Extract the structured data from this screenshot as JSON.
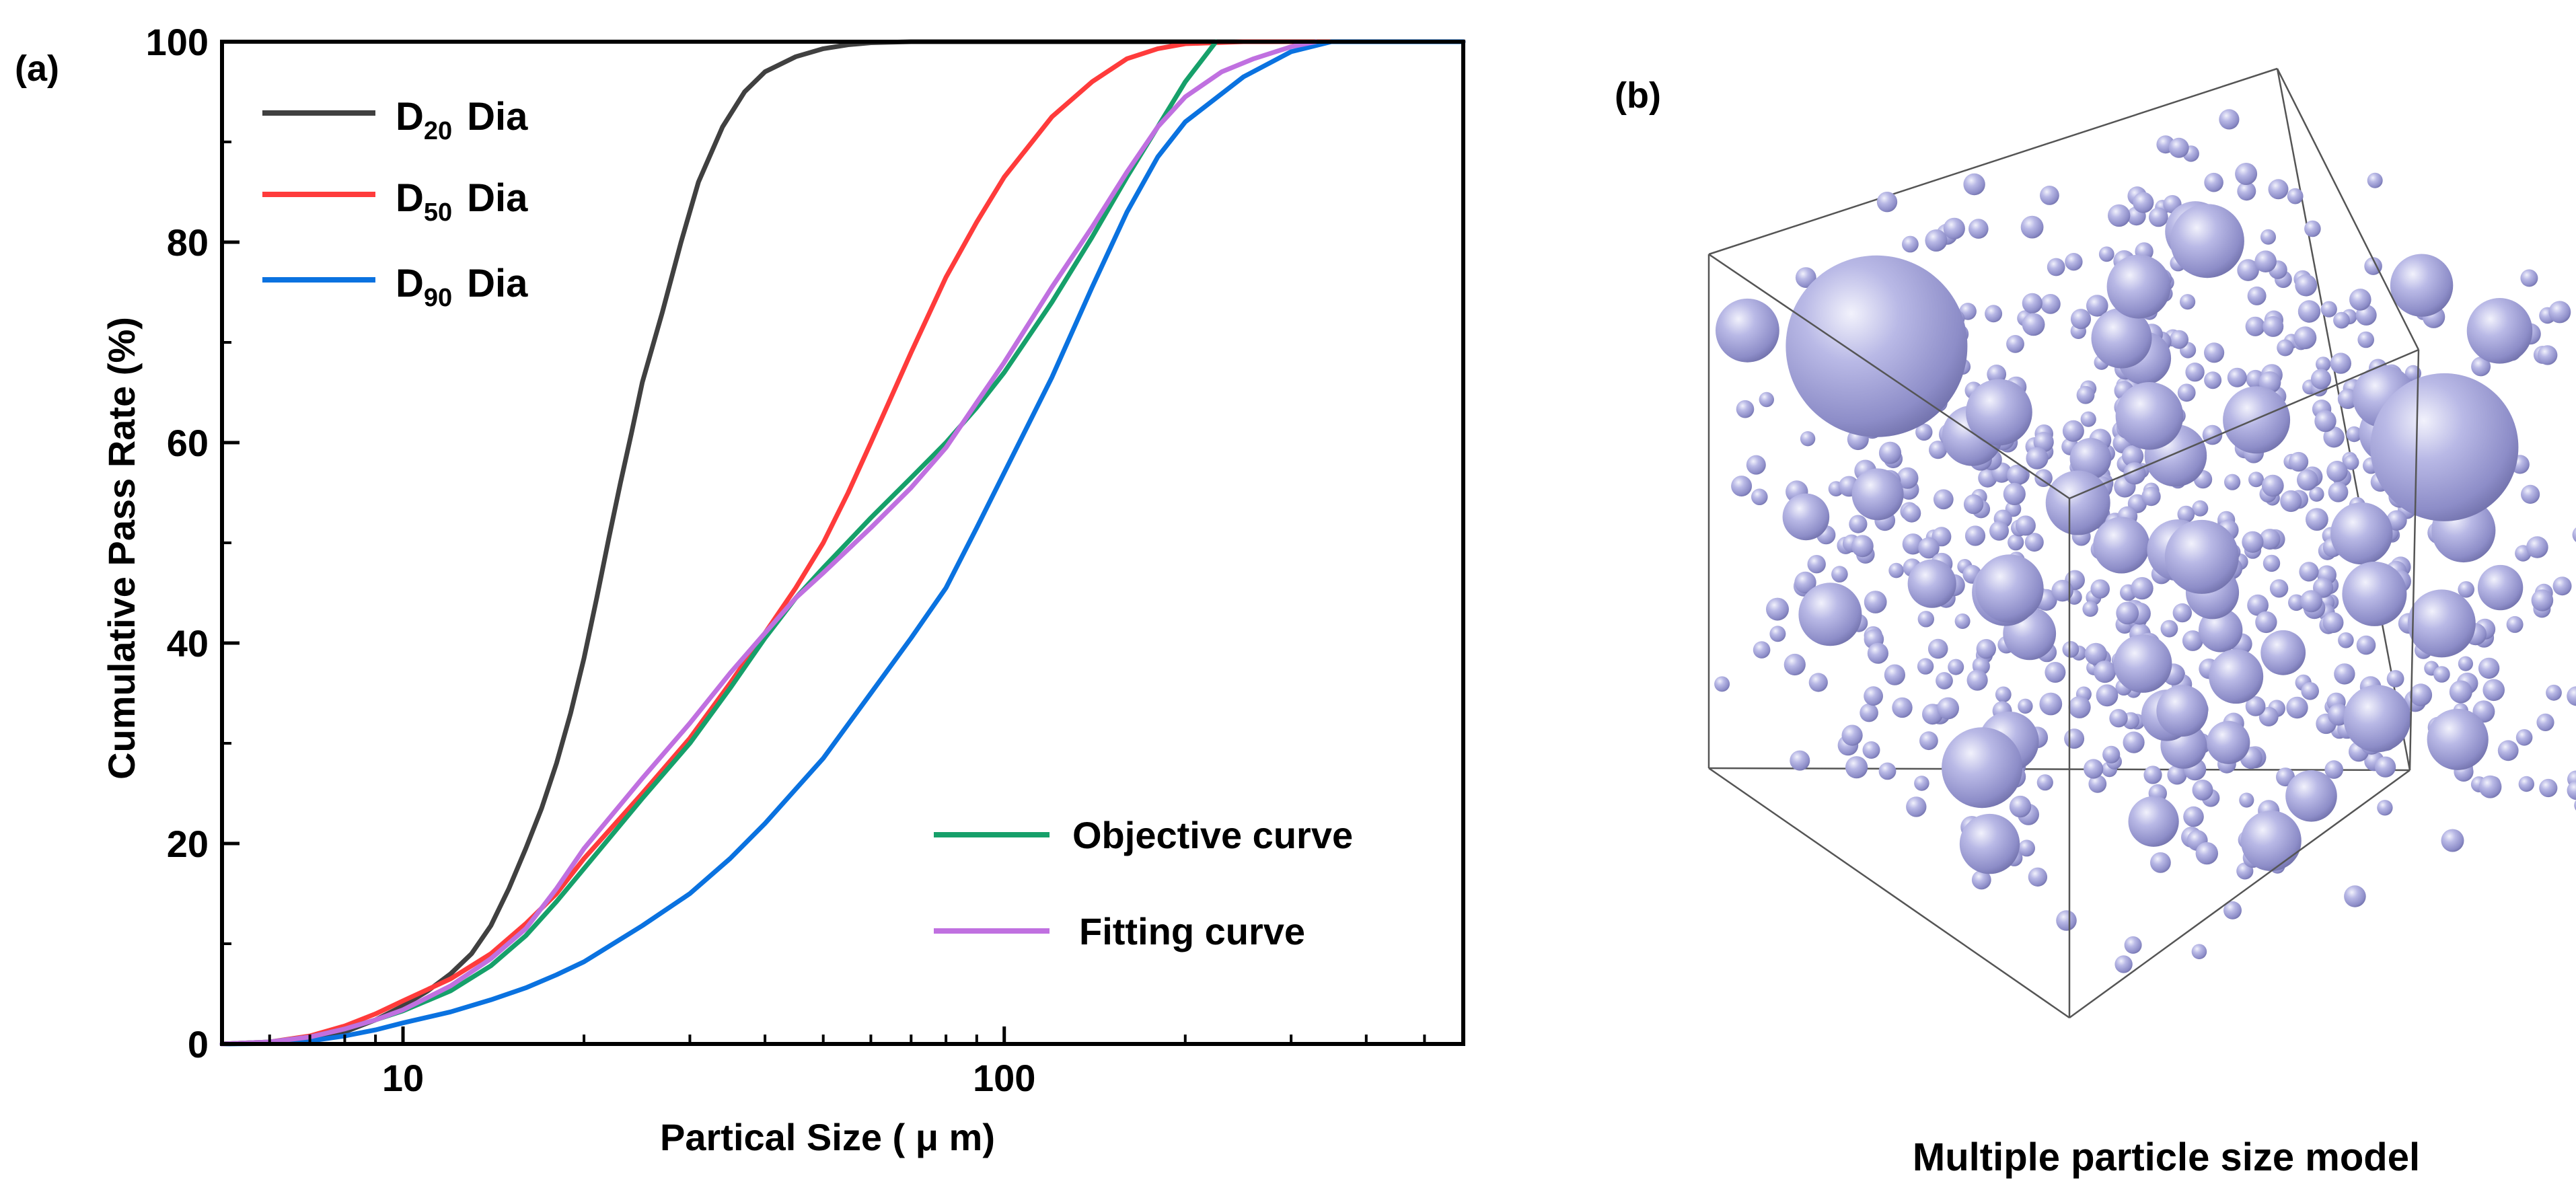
{
  "figure": {
    "panel_a_label": "(a)",
    "panel_b_label": "(b)",
    "model_caption": "Multiple particle size model"
  },
  "chart_data": {
    "type": "line",
    "x_scale": "log",
    "xlabel": "Partical Size ( μ m)",
    "ylabel": "Cumulative Pass Rate (%)",
    "xlim": [
      5,
      580
    ],
    "ylim": [
      0,
      100
    ],
    "x_ticks": [
      10,
      100
    ],
    "x_tick_labels": [
      "10",
      "100"
    ],
    "y_ticks": [
      0,
      20,
      40,
      60,
      80,
      100
    ],
    "y_tick_labels": [
      "0",
      "20",
      "40",
      "60",
      "80",
      "100"
    ],
    "legend_upper_left": [
      {
        "base": "D",
        "sub": "20",
        "suffix": "Dia",
        "color": "#404040"
      },
      {
        "base": "D",
        "sub": "50",
        "suffix": "Dia",
        "color": "#ff3b3b"
      },
      {
        "base": "D",
        "sub": "90",
        "suffix": "Dia",
        "color": "#0a72e0"
      }
    ],
    "legend_lower_right": [
      {
        "label": "Objective curve",
        "color": "#16a06a"
      },
      {
        "label": "Fitting curve",
        "color": "#c070e0"
      }
    ],
    "series": [
      {
        "name": "D20 Dia",
        "color": "#404040",
        "x": [
          5,
          6,
          7,
          8,
          9,
          10,
          11,
          12,
          13,
          14,
          15,
          16,
          17,
          18,
          19,
          20,
          21,
          22,
          23,
          24,
          25,
          27,
          29,
          31,
          34,
          37,
          40,
          45,
          50,
          55,
          60,
          70,
          100,
          150,
          300,
          580
        ],
        "y": [
          0,
          0.1,
          0.4,
          1.2,
          2.4,
          3.8,
          5.3,
          7.0,
          9.0,
          11.8,
          15.5,
          19.5,
          23.5,
          28.0,
          33.0,
          38.5,
          44.5,
          50.5,
          56.0,
          61.0,
          66.0,
          73.0,
          80.0,
          86.0,
          91.5,
          95.0,
          97.0,
          98.5,
          99.3,
          99.7,
          99.9,
          100,
          100,
          100,
          100,
          100
        ]
      },
      {
        "name": "D50 Dia",
        "color": "#ff3b3b",
        "x": [
          5,
          6,
          7,
          8,
          9,
          10,
          12,
          14,
          16,
          18,
          20,
          25,
          30,
          35,
          40,
          45,
          50,
          55,
          60,
          70,
          80,
          90,
          100,
          120,
          140,
          160,
          180,
          200,
          250,
          300,
          580
        ],
        "y": [
          0,
          0.2,
          0.8,
          1.8,
          3.0,
          4.3,
          6.5,
          9.0,
          12.0,
          15.0,
          18.5,
          25.0,
          30.5,
          36.0,
          41.0,
          45.5,
          50.0,
          55.0,
          60.0,
          69.0,
          76.5,
          82.0,
          86.5,
          92.5,
          96.0,
          98.3,
          99.3,
          99.8,
          100,
          100,
          100
        ]
      },
      {
        "name": "D90 Dia",
        "color": "#0a72e0",
        "x": [
          5,
          6,
          7,
          8,
          9,
          10,
          12,
          14,
          16,
          18,
          20,
          25,
          30,
          35,
          40,
          50,
          60,
          70,
          80,
          90,
          100,
          120,
          140,
          160,
          180,
          200,
          250,
          300,
          350,
          580
        ],
        "y": [
          0,
          0.05,
          0.3,
          0.8,
          1.4,
          2.1,
          3.2,
          4.4,
          5.6,
          6.9,
          8.2,
          11.8,
          15.0,
          18.5,
          22.0,
          28.5,
          35.0,
          40.5,
          45.5,
          51.5,
          57.0,
          66.5,
          75.5,
          83.0,
          88.5,
          92.0,
          96.5,
          99.0,
          100,
          100
        ]
      },
      {
        "name": "Objective curve",
        "color": "#16a06a",
        "x": [
          5,
          6,
          7,
          8,
          9,
          10,
          12,
          14,
          16,
          18,
          20,
          25,
          30,
          35,
          40,
          45,
          50,
          60,
          70,
          80,
          90,
          100,
          120,
          140,
          160,
          180,
          200,
          225
        ],
        "y": [
          0,
          0.2,
          0.7,
          1.5,
          2.4,
          3.3,
          5.3,
          7.8,
          10.8,
          14.2,
          17.5,
          24.5,
          30.0,
          35.5,
          40.5,
          44.5,
          47.5,
          52.5,
          56.5,
          60.0,
          63.5,
          67.0,
          74.0,
          80.5,
          86.5,
          91.5,
          96.0,
          100
        ]
      },
      {
        "name": "Fitting curve",
        "color": "#c070e0",
        "x": [
          5,
          6,
          7,
          8,
          9,
          10,
          12,
          14,
          16,
          18,
          20,
          25,
          30,
          35,
          40,
          45,
          50,
          60,
          70,
          80,
          90,
          100,
          120,
          140,
          160,
          180,
          200,
          230,
          260,
          300,
          330
        ],
        "y": [
          0,
          0.2,
          0.7,
          1.5,
          2.4,
          3.4,
          5.8,
          8.5,
          11.5,
          15.5,
          19.5,
          26.5,
          32.0,
          37.0,
          41.0,
          44.5,
          47.0,
          51.5,
          55.5,
          59.5,
          64.0,
          68.0,
          75.5,
          81.5,
          87.0,
          91.5,
          94.5,
          97.0,
          98.3,
          99.5,
          100
        ]
      }
    ]
  }
}
